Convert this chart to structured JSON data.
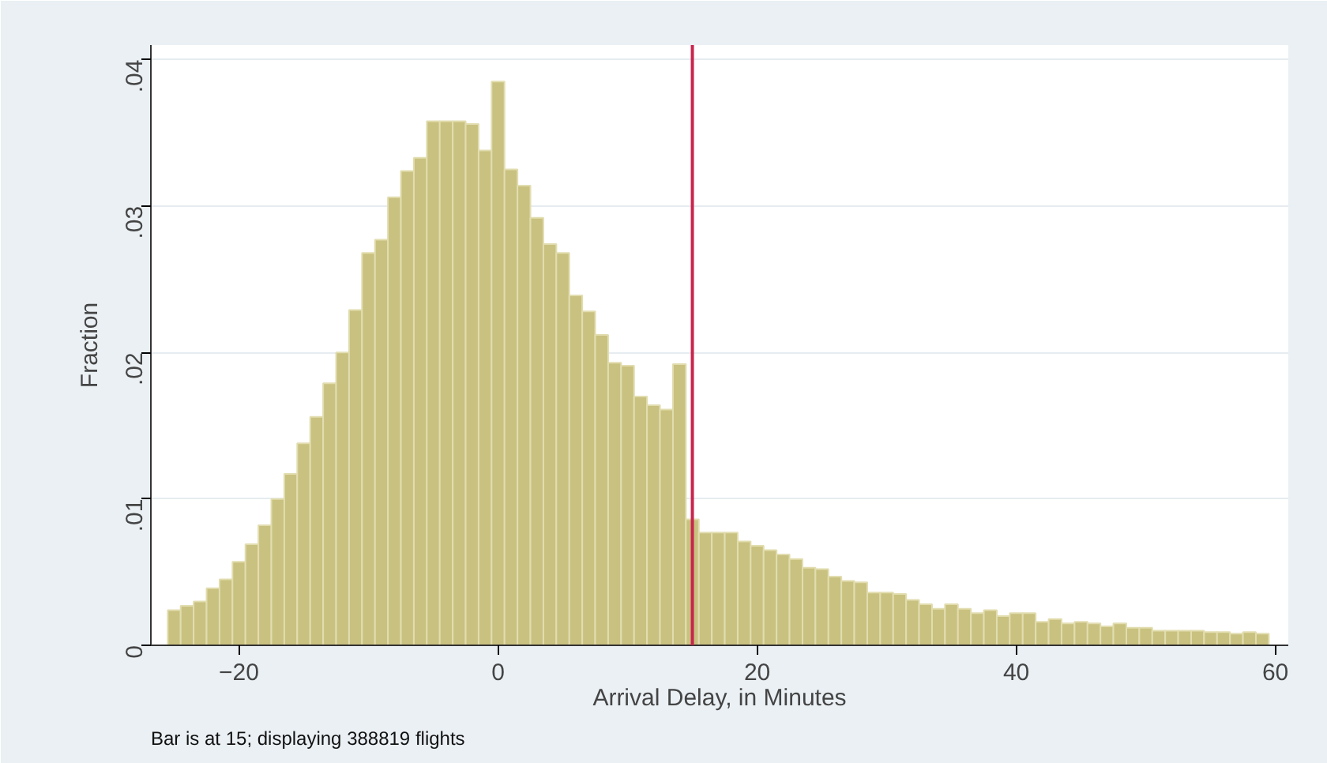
{
  "chart_data": {
    "type": "histogram",
    "xlabel": "Arrival Delay, in Minutes",
    "ylabel": "Fraction",
    "annotations": [
      "Bar is at 15; displaying 388819 flights"
    ],
    "color": "#c9c17f",
    "bins": [
      -25.5,
      -24.5,
      -23.5,
      -22.5,
      -21.5,
      -20.5,
      -19.5,
      -18.5,
      -17.5,
      -16.5,
      -15.5,
      -14.5,
      -13.5,
      -12.5,
      -11.5,
      -10.5,
      -9.5,
      -8.5,
      -7.5,
      -6.5,
      -5.5,
      -4.5,
      -3.5,
      -2.5,
      -1.5,
      -0.5,
      0.5,
      1.5,
      2.5,
      3.5,
      4.5,
      5.5,
      6.5,
      7.5,
      8.5,
      9.5,
      10.5,
      11.5,
      12.5,
      13.5,
      14.5,
      15.5,
      16.5,
      17.5,
      18.5,
      19.5,
      20.5,
      21.5,
      22.5,
      23.5,
      24.5,
      25.5,
      26.5,
      27.5,
      28.5,
      29.5,
      30.5,
      31.5,
      32.5,
      33.5,
      34.5,
      35.5,
      36.5,
      37.5,
      38.5,
      39.5,
      40.5,
      41.5,
      42.5,
      43.5,
      44.5,
      45.5,
      46.5,
      47.5,
      48.5,
      49.5,
      50.5,
      51.5,
      52.5,
      53.5,
      54.5,
      55.5,
      56.5,
      57.5,
      58.5,
      59.5
    ],
    "values": [
      0.0024,
      0.0027,
      0.003,
      0.0039,
      0.0045,
      0.0057,
      0.0069,
      0.0082,
      0.01,
      0.0117,
      0.0138,
      0.0156,
      0.0179,
      0.02,
      0.0229,
      0.0268,
      0.0277,
      0.0306,
      0.0324,
      0.0333,
      0.0358,
      0.0358,
      0.0358,
      0.0356,
      0.0338,
      0.0385,
      0.0325,
      0.0314,
      0.0292,
      0.0274,
      0.0268,
      0.0239,
      0.0228,
      0.0212,
      0.0193,
      0.0191,
      0.017,
      0.0164,
      0.0161,
      0.0192,
      0.0086,
      0.0077,
      0.0077,
      0.0077,
      0.0071,
      0.0068,
      0.0065,
      0.0062,
      0.0059,
      0.0053,
      0.0052,
      0.0047,
      0.0044,
      0.0043,
      0.0036,
      0.0036,
      0.0035,
      0.0031,
      0.0028,
      0.0025,
      0.0028,
      0.0025,
      0.0022,
      0.0024,
      0.002,
      0.0022,
      0.0022,
      0.0016,
      0.0018,
      0.0015,
      0.0016,
      0.0015,
      0.0013,
      0.0015,
      0.0012,
      0.0012,
      0.001,
      0.001,
      0.001,
      0.001,
      0.0009,
      0.0009,
      0.0008,
      0.0009,
      0.0008
    ],
    "xlim": [
      -26.8,
      61
    ],
    "ylim": [
      0,
      0.041
    ],
    "xticks": [
      -20,
      0,
      20,
      40,
      60
    ],
    "yticks": [
      {
        "value": 0,
        "label": "0"
      },
      {
        "value": 0.01,
        "label": ".01"
      },
      {
        "value": 0.02,
        "label": ".02"
      },
      {
        "value": 0.03,
        "label": ".03"
      },
      {
        "value": 0.04,
        "label": ".04"
      }
    ],
    "ref_lines": [
      {
        "axis": "x",
        "value": 15,
        "color": "#c8264e"
      }
    ],
    "grid": "y"
  }
}
